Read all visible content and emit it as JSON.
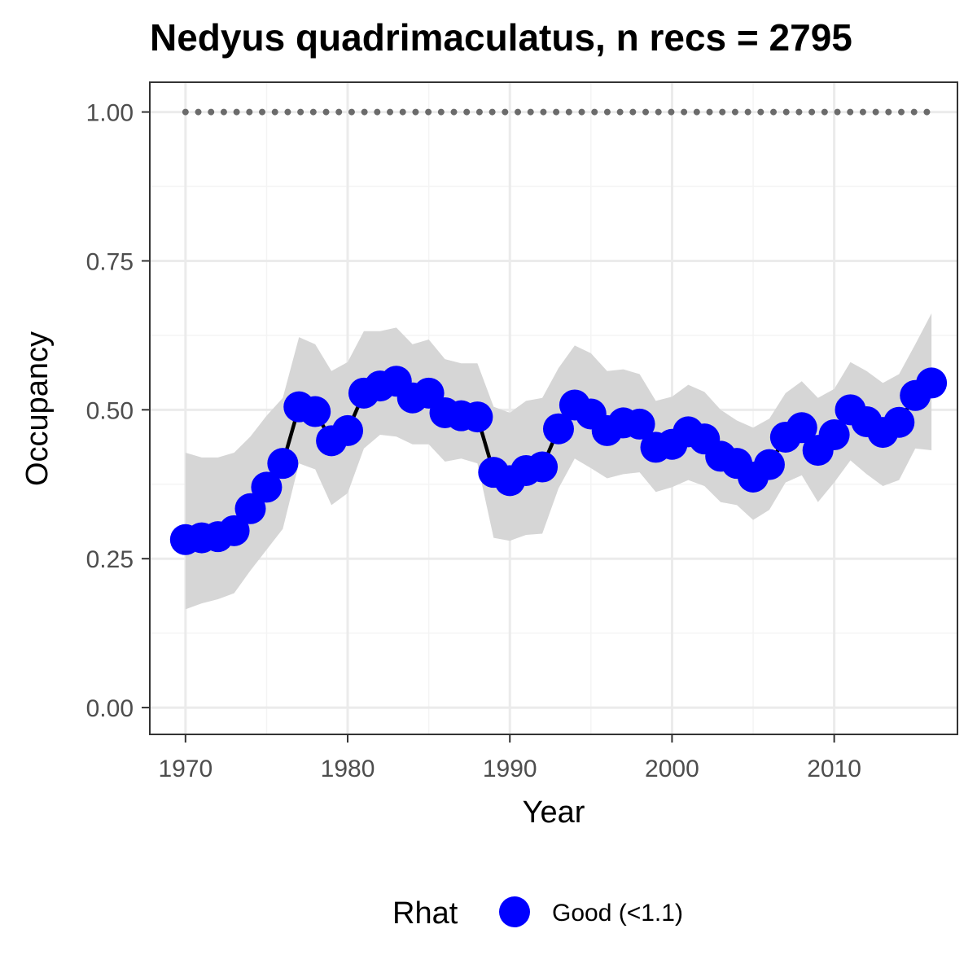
{
  "chart_data": {
    "type": "line",
    "title": "Nedyus quadrimaculatus, n recs = 2795",
    "xlabel": "Year",
    "ylabel": "Occupancy",
    "xlim": [
      1967.8,
      2017.6
    ],
    "ylim": [
      -0.045,
      1.05
    ],
    "x_ticks": [
      1970,
      1980,
      1990,
      2000,
      2010
    ],
    "x_tick_labels": [
      "1970",
      "1980",
      "1990",
      "2000",
      "2010"
    ],
    "y_ticks": [
      0,
      0.25,
      0.5,
      0.75,
      1.0
    ],
    "y_tick_labels": [
      "0.00",
      "0.25",
      "0.50",
      "0.75",
      "1.00"
    ],
    "grid": true,
    "years": [
      1970,
      1971,
      1972,
      1973,
      1974,
      1975,
      1976,
      1977,
      1978,
      1979,
      1980,
      1981,
      1982,
      1983,
      1984,
      1985,
      1986,
      1987,
      1988,
      1989,
      1990,
      1991,
      1992,
      1993,
      1994,
      1995,
      1996,
      1997,
      1998,
      1999,
      2000,
      2001,
      2002,
      2003,
      2004,
      2005,
      2006,
      2007,
      2008,
      2009,
      2010,
      2011,
      2012,
      2013,
      2014,
      2015,
      2016
    ],
    "occupancy": [
      0.282,
      0.285,
      0.287,
      0.297,
      0.334,
      0.37,
      0.41,
      0.505,
      0.497,
      0.448,
      0.465,
      0.528,
      0.54,
      0.548,
      0.52,
      0.528,
      0.495,
      0.49,
      0.488,
      0.395,
      0.381,
      0.398,
      0.404,
      0.468,
      0.508,
      0.493,
      0.465,
      0.478,
      0.476,
      0.437,
      0.442,
      0.463,
      0.451,
      0.422,
      0.41,
      0.387,
      0.408,
      0.454,
      0.47,
      0.432,
      0.458,
      0.5,
      0.48,
      0.462,
      0.479,
      0.524,
      0.545
    ],
    "lower_ci": [
      0.165,
      0.175,
      0.182,
      0.192,
      0.23,
      0.265,
      0.3,
      0.41,
      0.4,
      0.34,
      0.36,
      0.435,
      0.458,
      0.455,
      0.442,
      0.442,
      0.413,
      0.418,
      0.41,
      0.285,
      0.28,
      0.29,
      0.292,
      0.368,
      0.418,
      0.402,
      0.385,
      0.392,
      0.395,
      0.362,
      0.37,
      0.382,
      0.372,
      0.345,
      0.34,
      0.315,
      0.332,
      0.378,
      0.39,
      0.345,
      0.378,
      0.415,
      0.392,
      0.372,
      0.382,
      0.435,
      0.432
    ],
    "upper_ci": [
      0.428,
      0.42,
      0.42,
      0.428,
      0.455,
      0.49,
      0.52,
      0.622,
      0.61,
      0.565,
      0.58,
      0.632,
      0.632,
      0.638,
      0.61,
      0.618,
      0.585,
      0.578,
      0.578,
      0.505,
      0.495,
      0.515,
      0.52,
      0.57,
      0.608,
      0.595,
      0.565,
      0.568,
      0.56,
      0.515,
      0.522,
      0.542,
      0.53,
      0.5,
      0.482,
      0.47,
      0.485,
      0.528,
      0.548,
      0.52,
      0.535,
      0.58,
      0.565,
      0.545,
      0.56,
      0.61,
      0.662
    ],
    "reference_line": {
      "value": 1.0,
      "style": "dotted",
      "x_range": [
        1970,
        2016
      ]
    },
    "legend": {
      "title": "Rhat",
      "entries": [
        "Good (<1.1)"
      ],
      "placement": "bottom"
    },
    "colors": {
      "points": "#0000ff",
      "line": "#000000",
      "ribbon": "#d6d6d6",
      "reference": "#6b6b6b",
      "grid_major": "#ebebeb",
      "grid_minor": "#f4f4f4",
      "panel_border": "#333333"
    }
  }
}
